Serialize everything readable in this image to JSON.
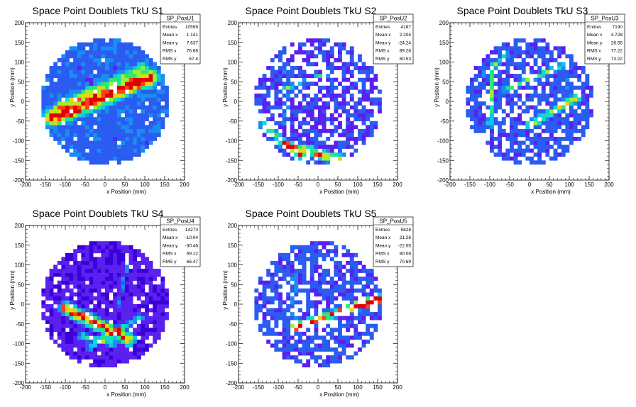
{
  "charts": [
    {
      "title": "Space Point Doublets TkU S1",
      "hist": "SP_PosU1",
      "entries": "10599",
      "mean_x": "1.141",
      "mean_y": "7.637",
      "rms_x": "76.68",
      "rms_y": "67.4",
      "pattern": 1
    },
    {
      "title": "Space Point Doublets TkU S2",
      "hist": "SP_PosU2",
      "entries": "4187",
      "mean_x": "2.204",
      "mean_y": "-24.24",
      "rms_x": "89.28",
      "rms_y": "80.53",
      "pattern": 2
    },
    {
      "title": "Space Point Doublets TkU S3",
      "hist": "SP_PosU3",
      "entries": "7190",
      "mean_x": "4.728",
      "mean_y": "26.55",
      "rms_x": "77.22",
      "rms_y": "73.22",
      "pattern": 3
    },
    {
      "title": "Space Point Doublets TkU S4",
      "hist": "SP_PosU4",
      "entries": "14273",
      "mean_x": "-10.04",
      "mean_y": "-30.46",
      "rms_x": "69.12",
      "rms_y": "66.47",
      "pattern": 4
    },
    {
      "title": "Space Point Doublets TkU S5",
      "hist": "SP_PosU5",
      "entries": "5828",
      "mean_x": "21.26",
      "mean_y": "-22.05",
      "rms_x": "80.08",
      "rms_y": "70.69",
      "pattern": 5
    }
  ],
  "stat_labels": {
    "entries": "Entries",
    "mean_x": "Mean x",
    "mean_y": "Mean y",
    "rms_x": "RMS x",
    "rms_y": "RMS y"
  },
  "axes": {
    "xlabel": "x Position (mm)",
    "ylabel": "y Position (mm)",
    "xlim": [
      -200,
      200
    ],
    "ylim": [
      -200,
      200
    ],
    "xticks": [
      "-200",
      "-150",
      "-100",
      "-50",
      "0",
      "50",
      "100",
      "150",
      "200"
    ],
    "yticks": [
      "-200",
      "-150",
      "-100",
      "-50",
      "0",
      "50",
      "100",
      "150",
      "200"
    ]
  },
  "chart_data": [
    {
      "type": "heatmap",
      "title": "Space Point Doublets TkU S1",
      "xlabel": "x Position (mm)",
      "ylabel": "y Position (mm)",
      "xlim": [
        -200,
        200
      ],
      "ylim": [
        -200,
        200
      ],
      "bin_width": 10,
      "active_region": "disk radius 160",
      "entries": 10599,
      "mean_x": 1.141,
      "mean_y": 7.637,
      "rms_x": 76.68,
      "rms_y": 67.4
    },
    {
      "type": "heatmap",
      "title": "Space Point Doublets TkU S2",
      "xlabel": "x Position (mm)",
      "ylabel": "y Position (mm)",
      "xlim": [
        -200,
        200
      ],
      "ylim": [
        -200,
        200
      ],
      "bin_width": 10,
      "active_region": "disk radius 160",
      "entries": 4187,
      "mean_x": 2.204,
      "mean_y": -24.24,
      "rms_x": 89.28,
      "rms_y": 80.53
    },
    {
      "type": "heatmap",
      "title": "Space Point Doublets TkU S3",
      "xlabel": "x Position (mm)",
      "ylabel": "y Position (mm)",
      "xlim": [
        -200,
        200
      ],
      "ylim": [
        -200,
        200
      ],
      "bin_width": 10,
      "active_region": "disk radius 160",
      "entries": 7190,
      "mean_x": 4.728,
      "mean_y": 26.55,
      "rms_x": 77.22,
      "rms_y": 73.22
    },
    {
      "type": "heatmap",
      "title": "Space Point Doublets TkU S4",
      "xlabel": "x Position (mm)",
      "ylabel": "y Position (mm)",
      "xlim": [
        -200,
        200
      ],
      "ylim": [
        -200,
        200
      ],
      "bin_width": 10,
      "active_region": "disk radius 160",
      "entries": 14273,
      "mean_x": -10.04,
      "mean_y": -30.46,
      "rms_x": 69.12,
      "rms_y": 66.47
    },
    {
      "type": "heatmap",
      "title": "Space Point Doublets TkU S5",
      "xlabel": "x Position (mm)",
      "ylabel": "y Position (mm)",
      "xlim": [
        -200,
        200
      ],
      "ylim": [
        -200,
        200
      ],
      "bin_width": 10,
      "active_region": "disk radius 160",
      "entries": 5828,
      "mean_x": 21.26,
      "mean_y": -22.05,
      "rms_x": 80.08,
      "rms_y": 70.69
    }
  ],
  "colors": {
    "palette": [
      "#3a00d6",
      "#5a20f0",
      "#2a5cf2",
      "#1a8ef0",
      "#0fc6ea",
      "#10e0c0",
      "#30e870",
      "#9ef030",
      "#f0d010",
      "#ff4020",
      "#e00000"
    ],
    "frame": "#000000",
    "background": "#ffffff"
  }
}
